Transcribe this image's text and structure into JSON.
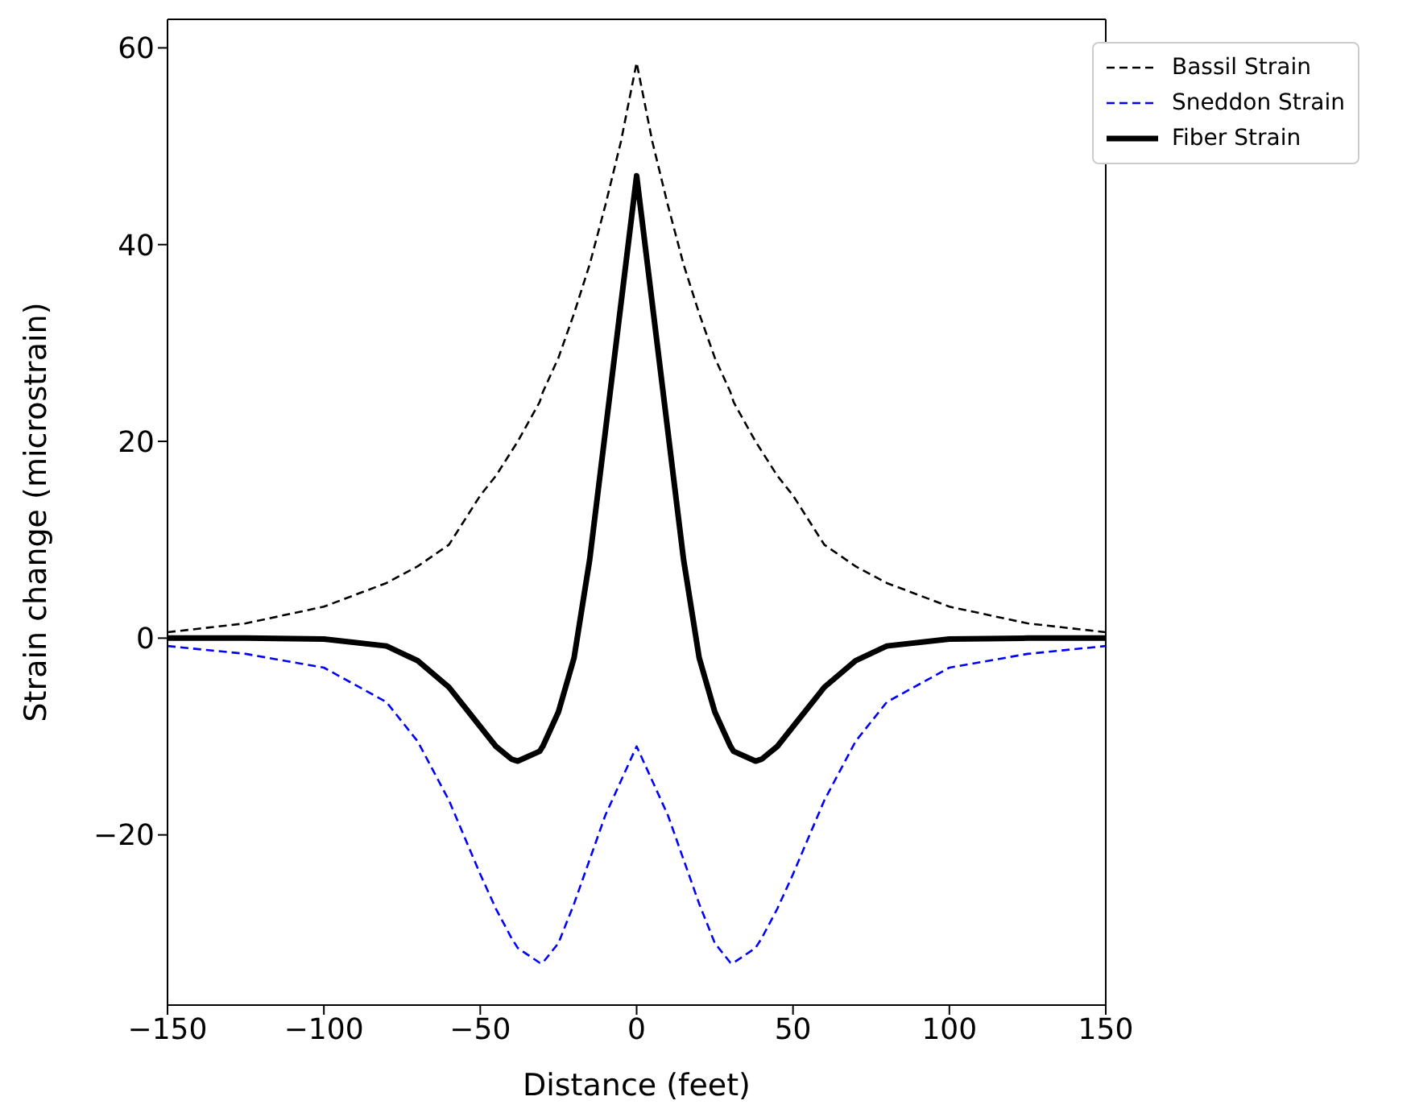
{
  "chart_data": {
    "type": "line",
    "xlabel": "Distance (feet)",
    "ylabel": "Strain change (microstrain)",
    "x": [
      -150,
      -125,
      -100,
      -80,
      -70,
      -60,
      -50,
      -45,
      -40,
      -38,
      -31,
      -30,
      -25,
      -20,
      -15,
      -10,
      -5,
      0,
      5,
      10,
      15,
      20,
      25,
      30,
      31,
      38,
      40,
      45,
      50,
      60,
      70,
      80,
      100,
      125,
      150
    ],
    "series": [
      {
        "name": "Bassil Strain",
        "color": "#000000",
        "line_style": "dashed",
        "values": [
          0.6,
          1.5,
          3.2,
          5.6,
          7.3,
          9.5,
          14.5,
          16.5,
          19,
          20,
          24,
          25,
          28.5,
          33,
          38,
          44,
          50.5,
          58.5,
          50.5,
          44,
          38,
          33,
          28.5,
          25,
          24,
          20,
          19,
          16.5,
          14.5,
          9.5,
          7.3,
          5.6,
          3.2,
          1.5,
          0.6
        ]
      },
      {
        "name": "Sneddon Strain",
        "color": "#0000ff",
        "line_style": "dashed",
        "values": [
          -0.8,
          -1.6,
          -3,
          -6.5,
          -10.5,
          -16.5,
          -24,
          -27.5,
          -30.5,
          -31.5,
          -33,
          -33,
          -31,
          -27,
          -22.5,
          -18,
          -14.5,
          -11,
          -14.5,
          -18,
          -22.5,
          -27,
          -31,
          -33,
          -33,
          -31.5,
          -30.5,
          -27.5,
          -24,
          -16.5,
          -10.5,
          -6.5,
          -3,
          -1.6,
          -0.8
        ]
      },
      {
        "name": "Fiber Strain",
        "color": "#000000",
        "line_style": "solid",
        "values": [
          0,
          0,
          -0.1,
          -0.8,
          -2.3,
          -5,
          -9,
          -11,
          -12.3,
          -12.5,
          -11.5,
          -11,
          -7.5,
          -2,
          8,
          21,
          34,
          47,
          34,
          21,
          8,
          -2,
          -7.5,
          -11,
          -11.5,
          -12.5,
          -12.3,
          -11,
          -9,
          -5,
          -2.3,
          -0.8,
          -0.1,
          0,
          0
        ]
      }
    ],
    "xlim": [
      -150,
      150
    ],
    "xticks": [
      {
        "value": -150,
        "label": "−150"
      },
      {
        "value": -100,
        "label": "−100"
      },
      {
        "value": -50,
        "label": "−50"
      },
      0,
      50,
      100,
      150
    ],
    "ylim": [
      -37.3,
      62.9
    ],
    "yticks": [
      {
        "value": -20,
        "label": "−20"
      },
      0,
      20,
      40,
      60
    ],
    "grid": false,
    "legend": "top right",
    "marker": "none"
  }
}
